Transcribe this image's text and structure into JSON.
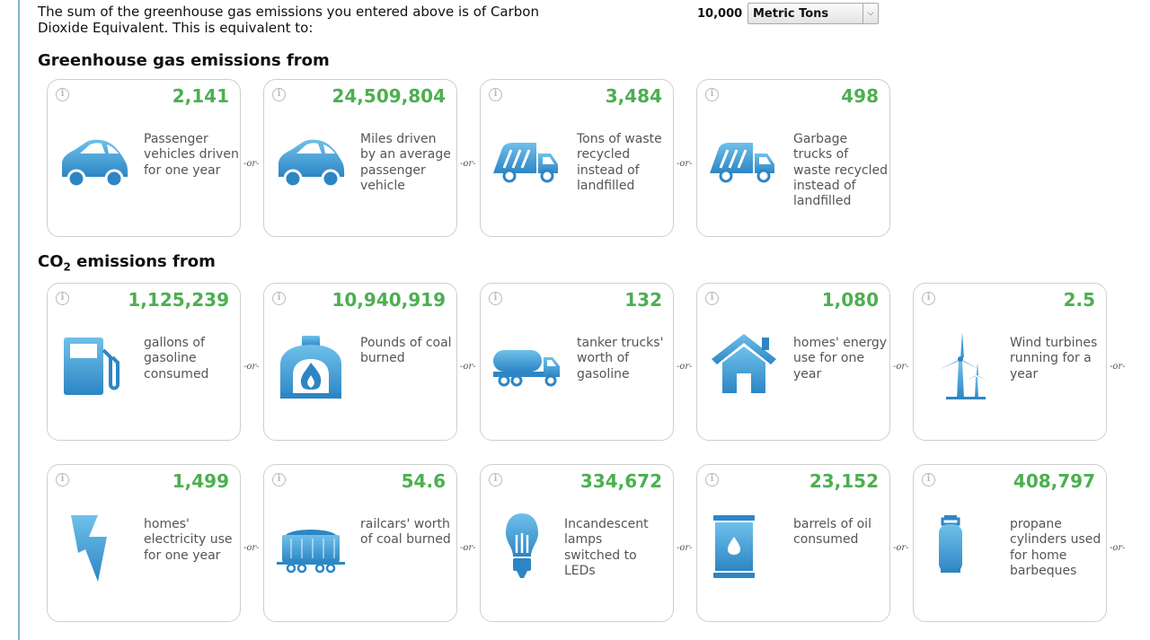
{
  "header": {
    "intro_text": "The sum of the greenhouse gas emissions you entered above is of Carbon Dioxide Equivalent. This is equivalent to:",
    "amount": "10,000",
    "unit": "Metric Tons"
  },
  "sections": {
    "ghg_title": "Greenhouse gas emissions from",
    "co2_prefix": "CO",
    "co2_sub": "2",
    "co2_suffix": " emissions from"
  },
  "separator": "-or-",
  "cards": {
    "vehicles": {
      "value": "2,141",
      "label": "Passenger vehicles driven for one year",
      "icon": "car-icon"
    },
    "miles": {
      "value": "24,509,804",
      "label": "Miles driven by an average passenger vehicle",
      "icon": "car-icon"
    },
    "waste_tons": {
      "value": "3,484",
      "label": "Tons of waste recycled instead of landfilled",
      "icon": "garbage-truck-icon"
    },
    "garbage_trucks": {
      "value": "498",
      "label": "Garbage trucks of waste recycled instead of landfilled",
      "icon": "garbage-truck-icon"
    },
    "gasoline": {
      "value": "1,125,239",
      "label": "gallons of gasoline consumed",
      "icon": "gas-pump-icon"
    },
    "coal_pounds": {
      "value": "10,940,919",
      "label": "Pounds of coal burned",
      "icon": "furnace-icon"
    },
    "tanker": {
      "value": "132",
      "label": "tanker trucks' worth of gasoline",
      "icon": "tanker-truck-icon"
    },
    "home_energy": {
      "value": "1,080",
      "label": "homes' energy use for one year",
      "icon": "house-icon"
    },
    "wind": {
      "value": "2.5",
      "label": "Wind turbines running for a year",
      "icon": "wind-turbine-icon"
    },
    "home_electricity": {
      "value": "1,499",
      "label": "homes' electricity use for one year",
      "icon": "lightning-icon"
    },
    "railcars": {
      "value": "54.6",
      "label": "railcars' worth of coal burned",
      "icon": "railcar-icon"
    },
    "lamps": {
      "value": "334,672",
      "label": "Incandescent lamps switched to LEDs",
      "icon": "light-bulb-icon"
    },
    "oil": {
      "value": "23,152",
      "label": "barrels of oil consumed",
      "icon": "oil-barrel-icon"
    },
    "propane": {
      "value": "408,797",
      "label": "propane cylinders used for home barbeques",
      "icon": "propane-cylinder-icon"
    }
  },
  "colors": {
    "accent_green": "#4caf50",
    "icon_blue": "#3d9ad1",
    "left_rule": "#7fb2d6"
  }
}
